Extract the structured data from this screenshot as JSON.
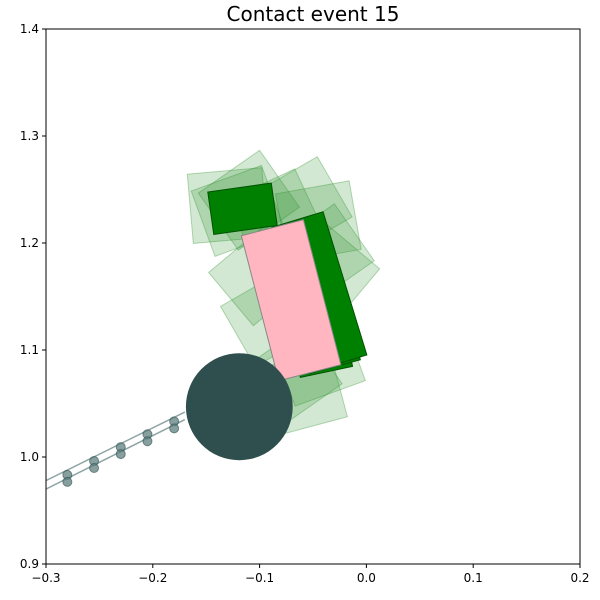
{
  "chart_data": {
    "type": "scatter",
    "title": "Contact event 15",
    "xlabel": "",
    "ylabel": "",
    "xlim": [
      -0.3,
      0.2
    ],
    "ylim": [
      0.9,
      1.4
    ],
    "grid": false,
    "xticks": [
      -0.3,
      -0.2,
      -0.1,
      0.0,
      0.1,
      0.2
    ],
    "xtick_labels": [
      "−0.3",
      "−0.2",
      "−0.1",
      "0.0",
      "0.1",
      "0.2"
    ],
    "yticks": [
      0.9,
      1.0,
      1.1,
      1.2,
      1.3,
      1.4
    ],
    "ytick_labels": [
      "0.9",
      "1.0",
      "1.1",
      "1.2",
      "1.3",
      "1.4"
    ],
    "colors": {
      "trail": "#228b22",
      "solid": "#008000",
      "object": "#ffb6c1",
      "pusher": "#2f4f4f",
      "path": "#5f7f7f"
    },
    "object": {
      "center": [
        -0.0705,
        1.1465
      ],
      "width": 0.06,
      "height": 0.14,
      "angle_deg": 14.5
    },
    "pusher": {
      "center": [
        -0.119,
        1.047
      ],
      "radius": 0.05
    },
    "solid_rects": [
      {
        "center": [
          -0.052,
          1.148
        ],
        "width": 0.05,
        "height": 0.14,
        "angle_deg": 12
      },
      {
        "center": [
          -0.048,
          1.152
        ],
        "width": 0.05,
        "height": 0.14,
        "angle_deg": 15
      },
      {
        "center": [
          -0.044,
          1.155
        ],
        "width": 0.05,
        "height": 0.14,
        "angle_deg": 17
      },
      {
        "center": [
          -0.116,
          1.232
        ],
        "width": 0.06,
        "height": 0.04,
        "angle_deg": 8
      }
    ],
    "trail_rects": [
      {
        "center": [
          -0.13,
          1.235
        ],
        "width": 0.07,
        "height": 0.065,
        "angle_deg": 5
      },
      {
        "center": [
          -0.12,
          1.23
        ],
        "width": 0.07,
        "height": 0.065,
        "angle_deg": 20
      },
      {
        "center": [
          -0.11,
          1.24
        ],
        "width": 0.07,
        "height": 0.065,
        "angle_deg": 35
      },
      {
        "center": [
          -0.085,
          1.225
        ],
        "width": 0.07,
        "height": 0.065,
        "angle_deg": 25
      },
      {
        "center": [
          -0.06,
          1.235
        ],
        "width": 0.07,
        "height": 0.065,
        "angle_deg": 30
      },
      {
        "center": [
          -0.045,
          1.22
        ],
        "width": 0.07,
        "height": 0.065,
        "angle_deg": 10
      },
      {
        "center": [
          -0.1,
          1.17
        ],
        "width": 0.07,
        "height": 0.065,
        "angle_deg": 40
      },
      {
        "center": [
          -0.06,
          1.17
        ],
        "width": 0.07,
        "height": 0.065,
        "angle_deg": 15
      },
      {
        "center": [
          -0.04,
          1.19
        ],
        "width": 0.07,
        "height": 0.065,
        "angle_deg": 35
      },
      {
        "center": [
          -0.035,
          1.17
        ],
        "width": 0.07,
        "height": 0.065,
        "angle_deg": 50
      },
      {
        "center": [
          -0.09,
          1.13
        ],
        "width": 0.07,
        "height": 0.065,
        "angle_deg": 30
      },
      {
        "center": [
          -0.05,
          1.12
        ],
        "width": 0.07,
        "height": 0.065,
        "angle_deg": 5
      },
      {
        "center": [
          -0.045,
          1.09
        ],
        "width": 0.07,
        "height": 0.065,
        "angle_deg": 20
      },
      {
        "center": [
          -0.07,
          1.075
        ],
        "width": 0.07,
        "height": 0.065,
        "angle_deg": 35
      },
      {
        "center": [
          -0.06,
          1.06
        ],
        "width": 0.07,
        "height": 0.065,
        "angle_deg": 15
      }
    ],
    "path_points": [
      {
        "x": -0.28,
        "y": 0.98
      },
      {
        "x": -0.255,
        "y": 0.993
      },
      {
        "x": -0.23,
        "y": 1.006
      },
      {
        "x": -0.205,
        "y": 1.018
      },
      {
        "x": -0.18,
        "y": 1.03
      }
    ],
    "path_lines": [
      [
        [
          -0.3,
          0.97
        ],
        [
          -0.17,
          1.035
        ]
      ],
      [
        [
          -0.3,
          0.978
        ],
        [
          -0.17,
          1.042
        ]
      ]
    ]
  }
}
